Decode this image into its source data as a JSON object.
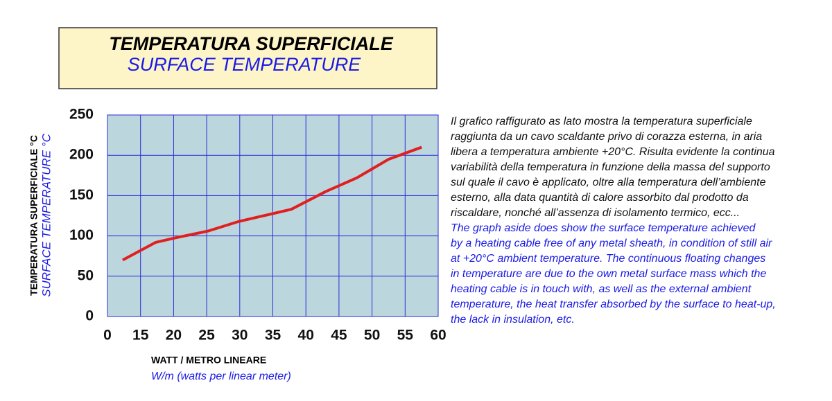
{
  "chart_data": {
    "type": "line",
    "title": "TEMPERATURA  SUPERFICIALE",
    "subtitle": "SURFACE TEMPERATURE",
    "y_label": "TEMPERATURA SUPERFICIALE  °C",
    "y_label_en": "SURFACE TEMPERATURE °C",
    "x_label": "WATT / METRO LINEARE",
    "x_label_en": "W/m (watts per linear meter)",
    "xlim": [
      10,
      60
    ],
    "xticks": [
      {
        "value": 10,
        "label": "0"
      },
      15,
      20,
      25,
      30,
      35,
      40,
      45,
      50,
      55,
      60
    ],
    "ylim": [
      0,
      250
    ],
    "yticks": [
      0,
      50,
      100,
      150,
      200,
      250
    ],
    "grid": true,
    "series": [
      {
        "color": "#e02020",
        "x": [
          12.3,
          17.3,
          20.5,
          25.2,
          29.9,
          35.2,
          37.8,
          43,
          47.7,
          52.5,
          57.5
        ],
        "values": [
          70,
          92,
          98,
          106,
          118,
          128,
          133,
          155,
          172,
          195,
          210
        ]
      }
    ],
    "description_it": [
      "Il grafico raffigurato as lato mostra la temperatura superficiale",
      "raggiunta da un cavo scaldante privo di corazza esterna, in aria",
      "libera a temperatura ambiente +20°C. Risulta evidente la continua",
      "variabilità della temperatura in funzione della massa del supporto",
      "sul quale il cavo è applicato, oltre alla temperatura dell’ambiente",
      "esterno, alla data quantità di calore assorbito dal prodotto da",
      "riscaldare, nonché all’assenza di isolamento termico, ecc..."
    ],
    "description_en": [
      "The graph aside does show the surface temperature achieved",
      "by a heating cable free of any metal sheath, in condition of still air",
      "at +20°C ambient temperature. The continuous floating changes",
      "in temperature are due to  the own metal surface mass which the",
      "heating cable is in touch with, as well as the external ambient",
      "temperature, the heat transfer absorbed by the surface to heat-up,",
      "the lack in insulation, etc."
    ]
  }
}
